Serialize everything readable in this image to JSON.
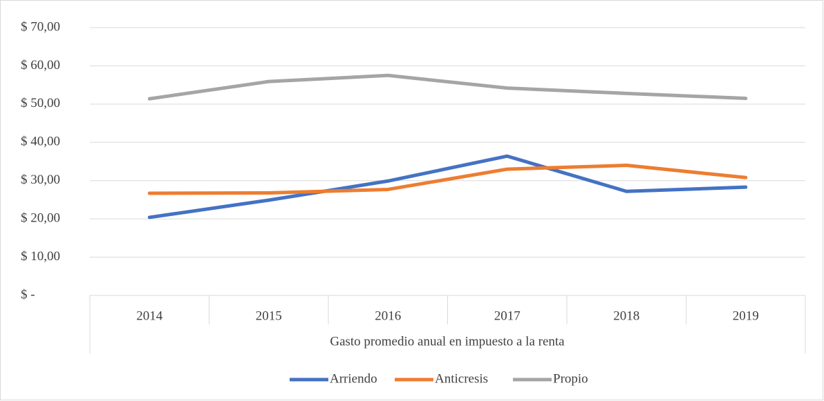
{
  "chart_data": {
    "type": "line",
    "categories": [
      "2014",
      "2015",
      "2016",
      "2017",
      "2018",
      "2019"
    ],
    "x_label": "Gasto promedio anual en impuesto a la renta",
    "series": [
      {
        "name": "Arriendo",
        "color": "#4472c4",
        "values": [
          20.4,
          24.9,
          29.9,
          36.4,
          27.2,
          28.3
        ]
      },
      {
        "name": "Anticresis",
        "color": "#ed7d31",
        "values": [
          26.7,
          26.8,
          27.7,
          33.0,
          34.0,
          30.8
        ]
      },
      {
        "name": "Propio",
        "color": "#a5a5a5",
        "values": [
          51.4,
          55.9,
          57.5,
          54.2,
          52.8,
          51.5
        ]
      }
    ],
    "ylim": [
      0,
      70
    ],
    "yticks": [
      {
        "value": 0,
        "label": "$ -"
      },
      {
        "value": 10,
        "label": "$ 10,00"
      },
      {
        "value": 20,
        "label": "$ 20,00"
      },
      {
        "value": 30,
        "label": "$ 30,00"
      },
      {
        "value": 40,
        "label": "$ 40,00"
      },
      {
        "value": 50,
        "label": "$ 50,00"
      },
      {
        "value": 60,
        "label": "$ 60,00"
      },
      {
        "value": 70,
        "label": "$ 70,00"
      }
    ],
    "grid": true,
    "legend": "bottom"
  }
}
